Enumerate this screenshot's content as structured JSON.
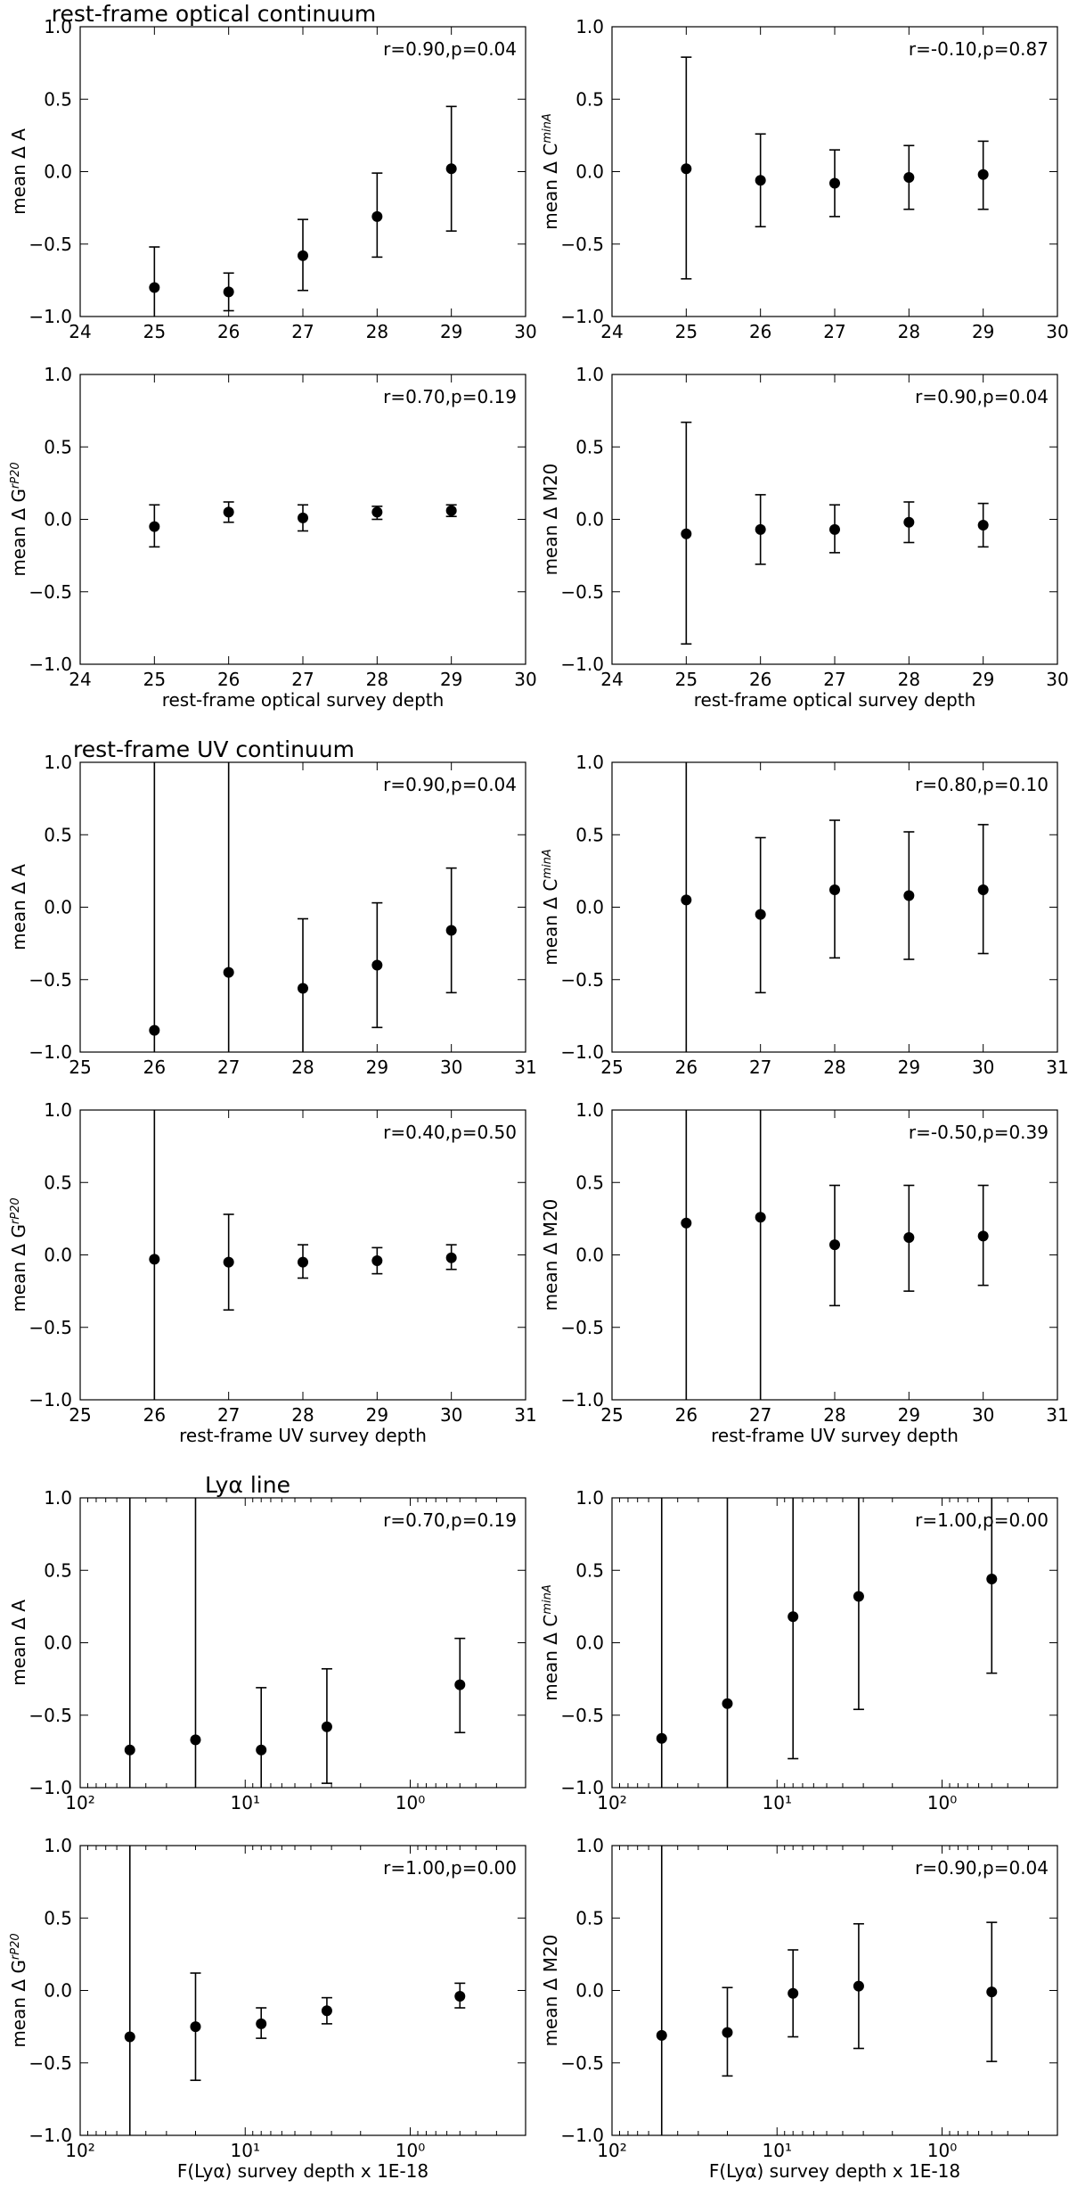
{
  "sections": [
    {
      "title": "rest-frame optical continuum"
    },
    {
      "title": "rest-frame UV continuum"
    },
    {
      "title": "Lyα line"
    }
  ],
  "chart_data": [
    {
      "type": "scatter",
      "section": 0,
      "ylabel": "mean Δ A",
      "ylabel_sup": "",
      "xlabel": "",
      "annotation": "r=0.90,p=0.04",
      "xscale": "linear",
      "xlim": [
        24,
        30
      ],
      "xticks": [
        24,
        25,
        26,
        27,
        28,
        29,
        30
      ],
      "ylim": [
        -1.0,
        1.0
      ],
      "points": [
        {
          "x": 25,
          "y": -0.8,
          "lo": -1.0,
          "hi": -0.52
        },
        {
          "x": 26,
          "y": -0.83,
          "lo": -0.96,
          "hi": -0.7
        },
        {
          "x": 27,
          "y": -0.58,
          "lo": -0.82,
          "hi": -0.33
        },
        {
          "x": 28,
          "y": -0.31,
          "lo": -0.59,
          "hi": -0.01
        },
        {
          "x": 29,
          "y": 0.02,
          "lo": -0.41,
          "hi": 0.45
        }
      ]
    },
    {
      "type": "scatter",
      "section": 0,
      "ylabel": "mean Δ C",
      "ylabel_sup": "minA",
      "xlabel": "",
      "annotation": "r=-0.10,p=0.87",
      "xscale": "linear",
      "xlim": [
        24,
        30
      ],
      "xticks": [
        24,
        25,
        26,
        27,
        28,
        29,
        30
      ],
      "ylim": [
        -1.0,
        1.0
      ],
      "points": [
        {
          "x": 25,
          "y": 0.02,
          "lo": -0.74,
          "hi": 0.79
        },
        {
          "x": 26,
          "y": -0.06,
          "lo": -0.38,
          "hi": 0.26
        },
        {
          "x": 27,
          "y": -0.08,
          "lo": -0.31,
          "hi": 0.15
        },
        {
          "x": 28,
          "y": -0.04,
          "lo": -0.26,
          "hi": 0.18
        },
        {
          "x": 29,
          "y": -0.02,
          "lo": -0.26,
          "hi": 0.21
        }
      ]
    },
    {
      "type": "scatter",
      "section": 0,
      "ylabel": "mean Δ G",
      "ylabel_sup": "rP20",
      "xlabel": "rest-frame optical survey depth",
      "annotation": "r=0.70,p=0.19",
      "xscale": "linear",
      "xlim": [
        24,
        30
      ],
      "xticks": [
        24,
        25,
        26,
        27,
        28,
        29,
        30
      ],
      "ylim": [
        -1.0,
        1.0
      ],
      "points": [
        {
          "x": 25,
          "y": -0.05,
          "lo": -0.19,
          "hi": 0.1
        },
        {
          "x": 26,
          "y": 0.05,
          "lo": -0.02,
          "hi": 0.12
        },
        {
          "x": 27,
          "y": 0.01,
          "lo": -0.08,
          "hi": 0.1
        },
        {
          "x": 28,
          "y": 0.05,
          "lo": 0.0,
          "hi": 0.09
        },
        {
          "x": 29,
          "y": 0.06,
          "lo": 0.02,
          "hi": 0.1
        }
      ]
    },
    {
      "type": "scatter",
      "section": 0,
      "ylabel": "mean Δ M20",
      "ylabel_sup": "",
      "xlabel": "rest-frame optical survey depth",
      "annotation": "r=0.90,p=0.04",
      "xscale": "linear",
      "xlim": [
        24,
        30
      ],
      "xticks": [
        24,
        25,
        26,
        27,
        28,
        29,
        30
      ],
      "ylim": [
        -1.0,
        1.0
      ],
      "points": [
        {
          "x": 25,
          "y": -0.1,
          "lo": -0.86,
          "hi": 0.67
        },
        {
          "x": 26,
          "y": -0.07,
          "lo": -0.31,
          "hi": 0.17
        },
        {
          "x": 27,
          "y": -0.07,
          "lo": -0.23,
          "hi": 0.1
        },
        {
          "x": 28,
          "y": -0.02,
          "lo": -0.16,
          "hi": 0.12
        },
        {
          "x": 29,
          "y": -0.04,
          "lo": -0.19,
          "hi": 0.11
        }
      ]
    },
    {
      "type": "scatter",
      "section": 1,
      "ylabel": "mean Δ A",
      "ylabel_sup": "",
      "xlabel": "",
      "annotation": "r=0.90,p=0.04",
      "xscale": "linear",
      "xlim": [
        25,
        31
      ],
      "xticks": [
        25,
        26,
        27,
        28,
        29,
        30,
        31
      ],
      "ylim": [
        -1.0,
        1.0
      ],
      "points": [
        {
          "x": 26,
          "y": -0.85,
          "lo": -1.0,
          "hi": 1.0
        },
        {
          "x": 27,
          "y": -0.45,
          "lo": -1.0,
          "hi": 1.0
        },
        {
          "x": 28,
          "y": -0.56,
          "lo": -1.0,
          "hi": -0.08
        },
        {
          "x": 29,
          "y": -0.4,
          "lo": -0.83,
          "hi": 0.03
        },
        {
          "x": 30,
          "y": -0.16,
          "lo": -0.59,
          "hi": 0.27
        }
      ]
    },
    {
      "type": "scatter",
      "section": 1,
      "ylabel": "mean Δ C",
      "ylabel_sup": "minA",
      "xlabel": "",
      "annotation": "r=0.80,p=0.10",
      "xscale": "linear",
      "xlim": [
        25,
        31
      ],
      "xticks": [
        25,
        26,
        27,
        28,
        29,
        30,
        31
      ],
      "ylim": [
        -1.0,
        1.0
      ],
      "points": [
        {
          "x": 26,
          "y": 0.05,
          "lo": -1.0,
          "hi": 1.0
        },
        {
          "x": 27,
          "y": -0.05,
          "lo": -0.59,
          "hi": 0.48
        },
        {
          "x": 28,
          "y": 0.12,
          "lo": -0.35,
          "hi": 0.6
        },
        {
          "x": 29,
          "y": 0.08,
          "lo": -0.36,
          "hi": 0.52
        },
        {
          "x": 30,
          "y": 0.12,
          "lo": -0.32,
          "hi": 0.57
        }
      ]
    },
    {
      "type": "scatter",
      "section": 1,
      "ylabel": "mean Δ G",
      "ylabel_sup": "rP20",
      "xlabel": "rest-frame UV survey depth",
      "annotation": "r=0.40,p=0.50",
      "xscale": "linear",
      "xlim": [
        25,
        31
      ],
      "xticks": [
        25,
        26,
        27,
        28,
        29,
        30,
        31
      ],
      "ylim": [
        -1.0,
        1.0
      ],
      "points": [
        {
          "x": 26,
          "y": -0.03,
          "lo": -1.0,
          "hi": 1.0
        },
        {
          "x": 27,
          "y": -0.05,
          "lo": -0.38,
          "hi": 0.28
        },
        {
          "x": 28,
          "y": -0.05,
          "lo": -0.16,
          "hi": 0.07
        },
        {
          "x": 29,
          "y": -0.04,
          "lo": -0.13,
          "hi": 0.05
        },
        {
          "x": 30,
          "y": -0.02,
          "lo": -0.1,
          "hi": 0.07
        }
      ]
    },
    {
      "type": "scatter",
      "section": 1,
      "ylabel": "mean Δ M20",
      "ylabel_sup": "",
      "xlabel": "rest-frame UV survey depth",
      "annotation": "r=-0.50,p=0.39",
      "xscale": "linear",
      "xlim": [
        25,
        31
      ],
      "xticks": [
        25,
        26,
        27,
        28,
        29,
        30,
        31
      ],
      "ylim": [
        -1.0,
        1.0
      ],
      "points": [
        {
          "x": 26,
          "y": 0.22,
          "lo": -1.0,
          "hi": 1.0
        },
        {
          "x": 27,
          "y": 0.26,
          "lo": -1.0,
          "hi": 1.0
        },
        {
          "x": 28,
          "y": 0.07,
          "lo": -0.35,
          "hi": 0.48
        },
        {
          "x": 29,
          "y": 0.12,
          "lo": -0.25,
          "hi": 0.48
        },
        {
          "x": 30,
          "y": 0.13,
          "lo": -0.21,
          "hi": 0.48
        }
      ]
    },
    {
      "type": "scatter",
      "section": 2,
      "ylabel": "mean Δ A",
      "ylabel_sup": "",
      "xlabel": "",
      "annotation": "r=0.70,p=0.19",
      "xscale": "log-reversed",
      "xlim": [
        100,
        0.2
      ],
      "xticks": [
        100,
        10,
        1
      ],
      "xticklabels": [
        "10²",
        "10¹",
        "10⁰"
      ],
      "ylim": [
        -1.0,
        1.0
      ],
      "points": [
        {
          "x": 50,
          "y": -0.74,
          "lo": -1.0,
          "hi": 1.0
        },
        {
          "x": 20,
          "y": -0.67,
          "lo": -1.0,
          "hi": 1.0
        },
        {
          "x": 8,
          "y": -0.74,
          "lo": -1.0,
          "hi": -0.31
        },
        {
          "x": 3.2,
          "y": -0.58,
          "lo": -0.97,
          "hi": -0.18
        },
        {
          "x": 0.5,
          "y": -0.29,
          "lo": -0.62,
          "hi": 0.03
        }
      ]
    },
    {
      "type": "scatter",
      "section": 2,
      "ylabel": "mean Δ C",
      "ylabel_sup": "minA",
      "xlabel": "",
      "annotation": "r=1.00,p=0.00",
      "xscale": "log-reversed",
      "xlim": [
        100,
        0.2
      ],
      "xticks": [
        100,
        10,
        1
      ],
      "xticklabels": [
        "10²",
        "10¹",
        "10⁰"
      ],
      "ylim": [
        -1.0,
        1.0
      ],
      "points": [
        {
          "x": 50,
          "y": -0.66,
          "lo": -1.0,
          "hi": 1.0
        },
        {
          "x": 20,
          "y": -0.42,
          "lo": -1.0,
          "hi": 1.0
        },
        {
          "x": 8,
          "y": 0.18,
          "lo": -0.8,
          "hi": 1.0
        },
        {
          "x": 3.2,
          "y": 0.32,
          "lo": -0.46,
          "hi": 1.0
        },
        {
          "x": 0.5,
          "y": 0.44,
          "lo": -0.21,
          "hi": 1.0
        }
      ]
    },
    {
      "type": "scatter",
      "section": 2,
      "ylabel": "mean Δ G",
      "ylabel_sup": "rP20",
      "xlabel": "F(Lyα) survey depth x 1E-18",
      "annotation": "r=1.00,p=0.00",
      "xscale": "log-reversed",
      "xlim": [
        100,
        0.2
      ],
      "xticks": [
        100,
        10,
        1
      ],
      "xticklabels": [
        "10²",
        "10¹",
        "10⁰"
      ],
      "ylim": [
        -1.0,
        1.0
      ],
      "points": [
        {
          "x": 50,
          "y": -0.32,
          "lo": -1.0,
          "hi": 1.0
        },
        {
          "x": 20,
          "y": -0.25,
          "lo": -0.62,
          "hi": 0.12
        },
        {
          "x": 8,
          "y": -0.23,
          "lo": -0.33,
          "hi": -0.12
        },
        {
          "x": 3.2,
          "y": -0.14,
          "lo": -0.23,
          "hi": -0.05
        },
        {
          "x": 0.5,
          "y": -0.04,
          "lo": -0.12,
          "hi": 0.05
        }
      ]
    },
    {
      "type": "scatter",
      "section": 2,
      "ylabel": "mean Δ M20",
      "ylabel_sup": "",
      "xlabel": "F(Lyα) survey depth x 1E-18",
      "annotation": "r=0.90,p=0.04",
      "xscale": "log-reversed",
      "xlim": [
        100,
        0.2
      ],
      "xticks": [
        100,
        10,
        1
      ],
      "xticklabels": [
        "10²",
        "10¹",
        "10⁰"
      ],
      "ylim": [
        -1.0,
        1.0
      ],
      "points": [
        {
          "x": 50,
          "y": -0.31,
          "lo": -1.0,
          "hi": 1.0
        },
        {
          "x": 20,
          "y": -0.29,
          "lo": -0.59,
          "hi": 0.02
        },
        {
          "x": 8,
          "y": -0.02,
          "lo": -0.32,
          "hi": 0.28
        },
        {
          "x": 3.2,
          "y": 0.03,
          "lo": -0.4,
          "hi": 0.46
        },
        {
          "x": 0.5,
          "y": -0.01,
          "lo": -0.49,
          "hi": 0.47
        }
      ]
    }
  ]
}
